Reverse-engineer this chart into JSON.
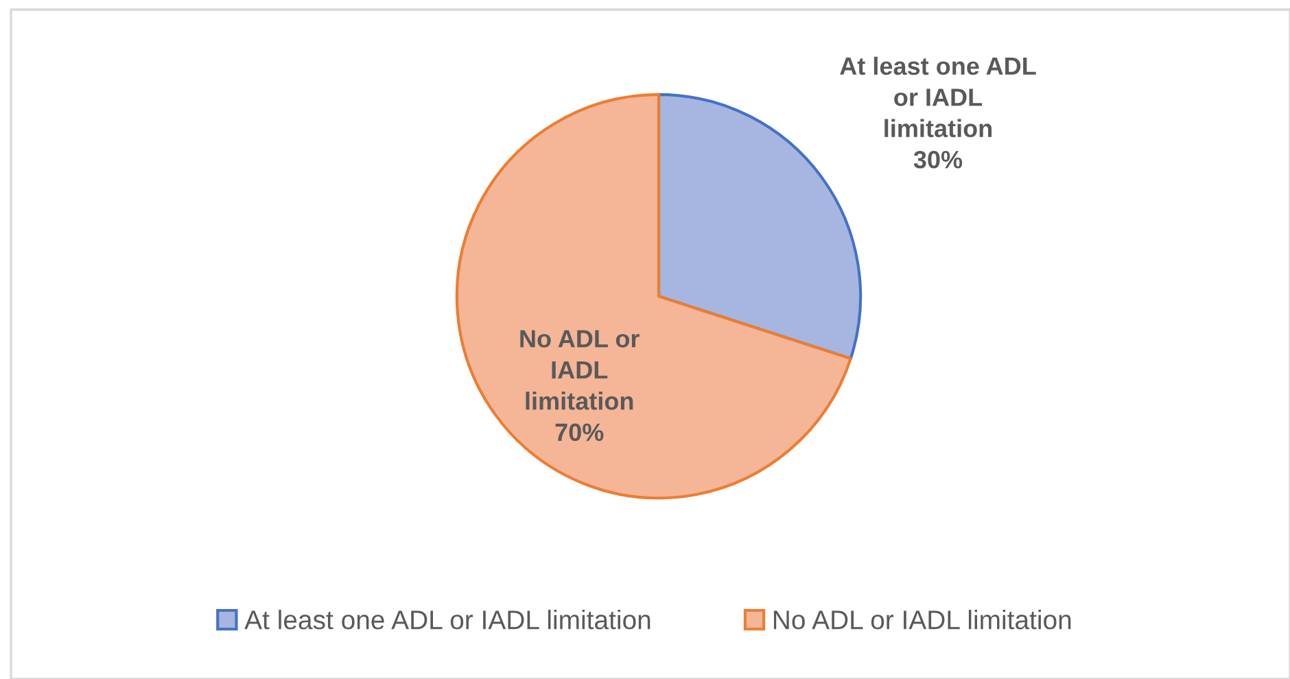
{
  "chart_data": {
    "type": "pie",
    "categories": [
      "At least one ADL or IADL limitation",
      "No ADL or IADL limitation"
    ],
    "values": [
      30,
      70
    ],
    "colors": [
      "#a6b6e0",
      "#f5b597"
    ],
    "value_labels": [
      "30%",
      "70%"
    ],
    "legend": "bottom"
  }
}
